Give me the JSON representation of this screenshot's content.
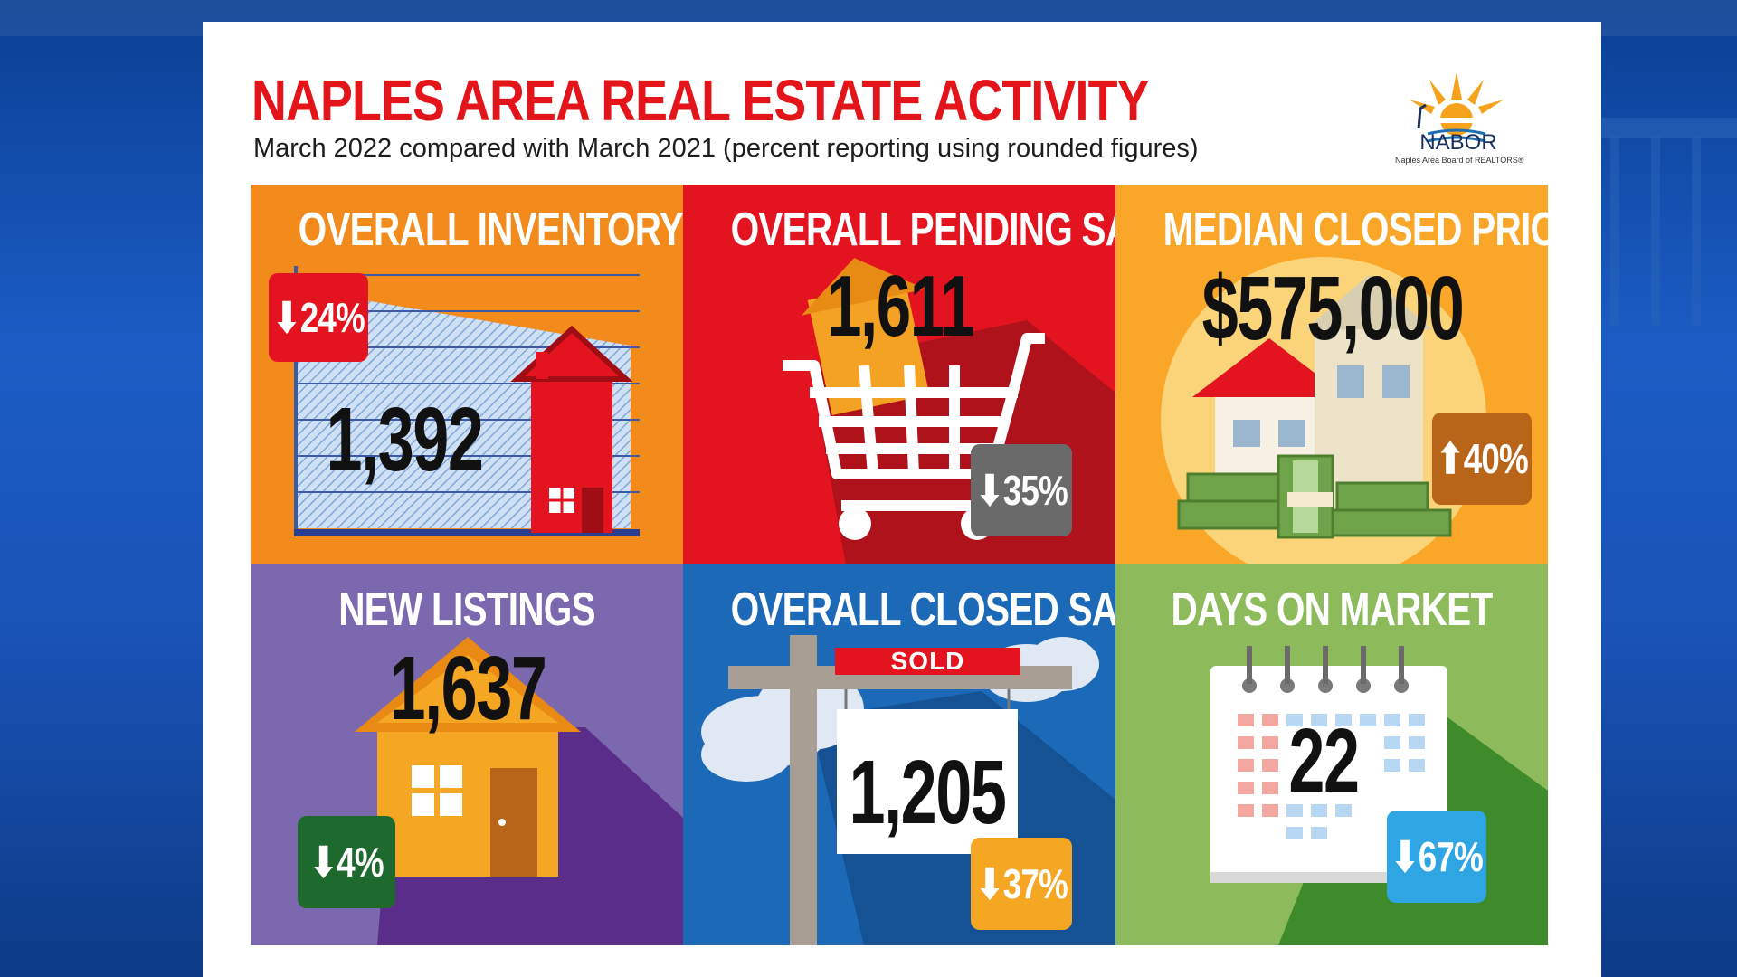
{
  "header": {
    "title": "NAPLES AREA REAL ESTATE ACTIVITY",
    "subtitle": "March 2022 compared with March 2021 (percent reporting using rounded figures)"
  },
  "logo": {
    "name": "NABOR",
    "tagline": "Naples Area Board of REALTORS®",
    "icon": "sun-heron-pier-logo"
  },
  "tiles": [
    {
      "title": "OVERALL INVENTORY",
      "value": "1,392",
      "change": "24%",
      "direction": "down",
      "icon": "house-chart-icon",
      "badge_color": "#e3141f"
    },
    {
      "title": "OVERALL PENDING SALES",
      "value": "1,611",
      "change": "35%",
      "direction": "down",
      "icon": "shopping-cart-house-icon",
      "badge_color": "#6a6a6a"
    },
    {
      "title": "MEDIAN CLOSED PRICE",
      "value": "$575,000",
      "change": "40%",
      "direction": "up",
      "icon": "house-money-icon",
      "badge_color": "#b8651a"
    },
    {
      "title": "NEW LISTINGS",
      "value": "1,637",
      "change": "4%",
      "direction": "down",
      "icon": "house-icon",
      "badge_color": "#1e6a2e"
    },
    {
      "title": "OVERALL CLOSED SALES",
      "value": "1,205",
      "change": "37%",
      "direction": "down",
      "icon": "sold-sign-icon",
      "badge_color": "#f5a623",
      "sign_label": "SOLD"
    },
    {
      "title": "DAYS ON MARKET",
      "value": "22",
      "change": "67%",
      "direction": "down",
      "icon": "calendar-icon",
      "badge_color": "#2fa6e3"
    }
  ],
  "arrows": {
    "down": "⬇",
    "up": "⬆"
  }
}
